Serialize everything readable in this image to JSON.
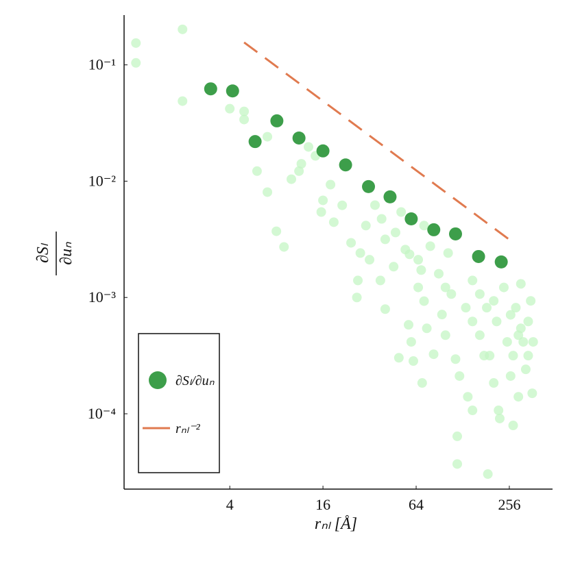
{
  "chart_data": {
    "type": "scatter",
    "x_label": "rₙₗ [Å]",
    "y_label": {
      "numerator": "∂Sₗ",
      "denominator": "∂uₙ"
    },
    "log_x": true,
    "log_y": true,
    "xlim": [
      0.83,
      487
    ],
    "ylim": [
      2.25e-05,
      0.268
    ],
    "xticks": [
      4,
      16,
      64,
      256
    ],
    "yticks": [
      {
        "value": 0.1,
        "label": "10⁻¹"
      },
      {
        "value": 0.01,
        "label": "10⁻²"
      },
      {
        "value": 0.001,
        "label": "10⁻³"
      },
      {
        "value": 0.0001,
        "label": "10⁻⁴"
      }
    ],
    "grid": false,
    "legend": "lower left",
    "background": {
      "color": "#c4f5c4",
      "x": [
        0.99,
        0.99,
        1.98,
        1.98,
        4,
        4.95,
        4.95,
        7.0,
        6.0,
        7.0,
        8.0,
        8.96,
        10,
        11.2,
        12.9,
        15.6,
        16,
        18.8,
        24.3,
        26.9,
        26.5,
        27.9,
        32,
        37.6,
        40.4,
        34.7,
        38.3,
        47.1,
        49.5,
        54.5,
        57.2,
        58,
        59.5,
        61.4,
        70,
        66,
        69,
        72,
        75,
        79,
        83,
        89.6,
        94,
        99,
        103,
        108,
        115,
        122,
        118,
        118,
        138,
        148,
        165,
        148,
        183,
        186,
        191,
        203,
        212,
        218,
        222,
        236,
        248,
        261,
        271,
        282,
        293,
        304,
        315,
        327,
        339,
        352,
        360,
        365,
        165,
        203,
        261,
        293,
        339,
        176,
        271,
        304,
        134,
        148,
        21.3,
        30.3,
        40.4,
        45.8,
        66,
        99,
        72,
        51.2,
        17.9,
        11.6,
        14.3
      ],
      "y": [
        0.154,
        0.104,
        0.202,
        0.0488,
        0.042,
        0.0398,
        0.0339,
        0.0241,
        0.0122,
        0.00805,
        0.00371,
        0.00272,
        0.0104,
        0.0122,
        0.0197,
        0.00543,
        0.00684,
        0.00444,
        0.00295,
        0.0014,
        0.001,
        0.00241,
        0.00211,
        0.0014,
        0.000794,
        0.00622,
        0.00474,
        0.00362,
        0.000303,
        0.00258,
        0.000582,
        0.00235,
        0.000415,
        0.000284,
        0.000184,
        0.00122,
        0.00172,
        0.00093,
        0.000543,
        0.00276,
        0.000325,
        0.0016,
        0.000713,
        0.000474,
        0.00241,
        0.00107,
        0.000295,
        0.000211,
        6.4e-05,
        3.7e-05,
        0.00014,
        0.000107,
        0.000474,
        0.0014,
        0.000817,
        3.03e-05,
        0.000316,
        0.000184,
        0.000622,
        0.000107,
        9.1e-05,
        0.00122,
        0.000415,
        0.000211,
        7.94e-05,
        0.000817,
        0.00014,
        0.00131,
        0.000415,
        0.000241,
        0.000622,
        0.000935,
        0.00015,
        0.000415,
        0.00107,
        0.000935,
        0.000709,
        0.000474,
        0.000316,
        0.000316,
        0.000316,
        0.000543,
        0.000817,
        0.000622,
        0.0062,
        0.00415,
        0.00316,
        0.00184,
        0.00211,
        0.00122,
        0.00415,
        0.00543,
        0.00934,
        0.0141,
        0.0165
      ]
    },
    "series": [
      {
        "name": "∂Sₗ/∂uₙ",
        "color": "#3d9e4a",
        "kind": "markers",
        "x": [
          3.01,
          4.17,
          5.83,
          8.06,
          11.2,
          16,
          22.4,
          31.5,
          43.4,
          59.5,
          83.2,
          115,
          162,
          227
        ],
        "values": [
          0.0622,
          0.0597,
          0.0219,
          0.033,
          0.0235,
          0.0182,
          0.0138,
          0.00898,
          0.00733,
          0.00474,
          0.00382,
          0.00352,
          0.00225,
          0.00202
        ]
      },
      {
        "name": "rₙₗ⁻²",
        "color": "#e07a4f",
        "kind": "dashed-line",
        "x": [
          4.95,
          272
        ],
        "values": [
          0.156,
          0.00296
        ]
      }
    ]
  }
}
